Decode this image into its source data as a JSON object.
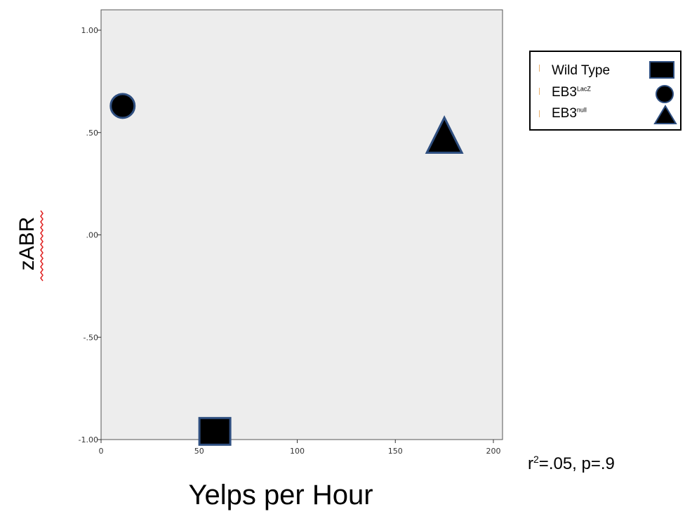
{
  "chart_data": {
    "type": "scatter",
    "xlabel": "Yelps per Hour",
    "ylabel": "zABR",
    "xlim": [
      0,
      200
    ],
    "ylim": [
      -1.0,
      1.0
    ],
    "x_ticks": [
      "0",
      "50",
      "100",
      "150",
      "200"
    ],
    "y_ticks": [
      "-1.00",
      "-.50",
      ".00",
      ".50",
      "1.00"
    ],
    "grid": false,
    "legend_position": "right",
    "series": [
      {
        "name": "Wild Type",
        "marker": "square",
        "x": [
          58
        ],
        "y": [
          -0.96
        ]
      },
      {
        "name": "EB3",
        "name_sup": "LacZ",
        "marker": "circle",
        "x": [
          11
        ],
        "y": [
          0.63
        ]
      },
      {
        "name": "EB3",
        "name_sup": "null",
        "marker": "triangle",
        "x": [
          175
        ],
        "y": [
          0.47
        ]
      }
    ],
    "annotation": {
      "prefix": "r",
      "sup": "2",
      "suffix": "=.05, p=.9"
    }
  },
  "colors": {
    "plot_background": "#ededed",
    "marker_fill": "#000000",
    "marker_stroke": "#2f4f80",
    "spellcheck_underline": "#e02020"
  }
}
